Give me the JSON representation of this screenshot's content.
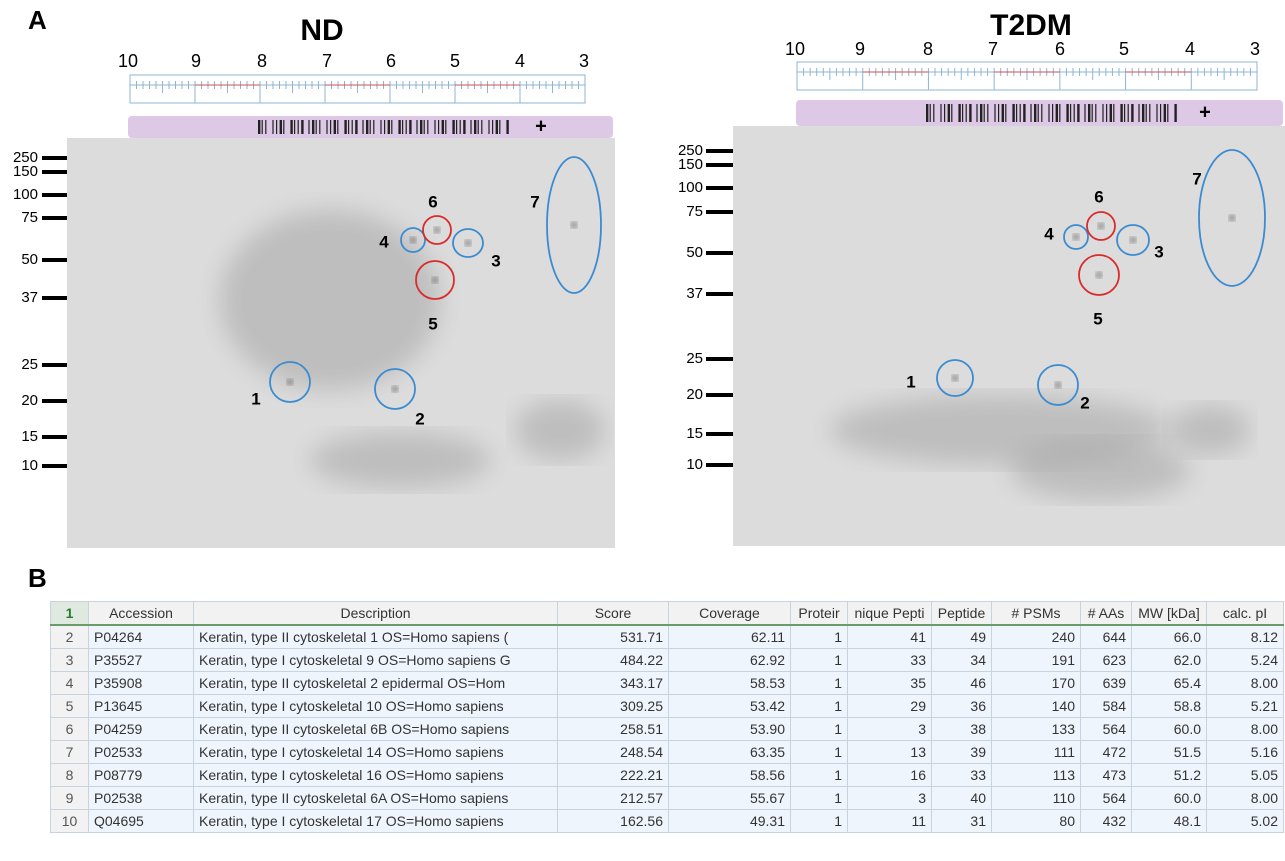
{
  "panel_a": {
    "label": "A",
    "gels": [
      {
        "title": "ND",
        "ph_scale": [
          10,
          9,
          8,
          7,
          6,
          5,
          4,
          3
        ],
        "plus_mark": "+",
        "mw_markers": [
          250,
          150,
          100,
          75,
          50,
          37,
          25,
          20,
          15,
          10
        ],
        "spots": [
          "1",
          "2",
          "3",
          "4",
          "5",
          "6",
          "7"
        ]
      },
      {
        "title": "T2DM",
        "ph_scale": [
          10,
          9,
          8,
          7,
          6,
          5,
          4,
          3
        ],
        "plus_mark": "+",
        "mw_markers": [
          250,
          150,
          100,
          75,
          50,
          37,
          25,
          20,
          15,
          10
        ],
        "spots": [
          "1",
          "2",
          "3",
          "4",
          "5",
          "6",
          "7"
        ]
      }
    ]
  },
  "panel_b": {
    "label": "B",
    "table": {
      "row_numbers": [
        "1",
        "2",
        "3",
        "4",
        "5",
        "6",
        "7",
        "8",
        "9",
        "10"
      ],
      "header": [
        "Accession",
        "Description",
        "Score",
        "Coverage",
        "Proteir",
        "nique Pepti",
        "Peptide",
        "# PSMs",
        "# AAs",
        "MW [kDa]",
        "calc. pI"
      ],
      "rows": [
        [
          "P04264",
          "Keratin, type II cytoskeletal 1 OS=Homo sapiens (",
          "531.71",
          "62.11",
          "1",
          "41",
          "49",
          "240",
          "644",
          "66.0",
          "8.12"
        ],
        [
          "P35527",
          "Keratin, type I cytoskeletal 9 OS=Homo sapiens G",
          "484.22",
          "62.92",
          "1",
          "33",
          "34",
          "191",
          "623",
          "62.0",
          "5.24"
        ],
        [
          "P35908",
          "Keratin, type II cytoskeletal 2 epidermal OS=Hom",
          "343.17",
          "58.53",
          "1",
          "35",
          "46",
          "170",
          "639",
          "65.4",
          "8.00"
        ],
        [
          "P13645",
          "Keratin, type I cytoskeletal 10 OS=Homo sapiens",
          "309.25",
          "53.42",
          "1",
          "29",
          "36",
          "140",
          "584",
          "58.8",
          "5.21"
        ],
        [
          "P04259",
          "Keratin, type II cytoskeletal 6B OS=Homo sapiens",
          "258.51",
          "53.90",
          "1",
          "3",
          "38",
          "133",
          "564",
          "60.0",
          "8.00"
        ],
        [
          "P02533",
          "Keratin, type I cytoskeletal 14 OS=Homo sapiens",
          "248.54",
          "63.35",
          "1",
          "13",
          "39",
          "111",
          "472",
          "51.5",
          "5.16"
        ],
        [
          "P08779",
          "Keratin, type I cytoskeletal 16 OS=Homo sapiens",
          "222.21",
          "58.56",
          "1",
          "16",
          "33",
          "113",
          "473",
          "51.2",
          "5.05"
        ],
        [
          "P02538",
          "Keratin, type II cytoskeletal 6A OS=Homo sapiens",
          "212.57",
          "55.67",
          "1",
          "3",
          "40",
          "110",
          "564",
          "60.0",
          "8.00"
        ],
        [
          "Q04695",
          "Keratin, type I cytoskeletal 17 OS=Homo sapiens",
          "162.56",
          "49.31",
          "1",
          "11",
          "31",
          "80",
          "432",
          "48.1",
          "5.02"
        ]
      ]
    }
  }
}
